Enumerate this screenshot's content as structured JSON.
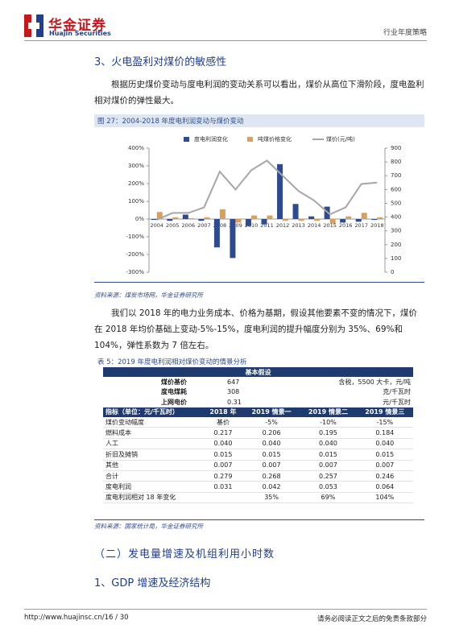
{
  "header": {
    "brand": "华金证券",
    "brand_en": "Huajin Securities",
    "section": "行业年度策略"
  },
  "heading": "3、火电盈利对煤价的敏感性",
  "paragraph1": "根据历史煤价变动与度电利润的变动关系可以看出，煤价从高位下滑阶段，度电盈利相对煤价的弹性最大。",
  "figure_caption": "图 27：2004-2018 年度电利润变动与煤价变动",
  "chart_data": {
    "type": "bar",
    "categories": [
      "2004",
      "2005",
      "2006",
      "2007",
      "2008",
      "2009",
      "2010",
      "2011",
      "2012",
      "2013",
      "2014",
      "2015",
      "2016",
      "2017",
      "2018"
    ],
    "series": [
      {
        "name": "度电利润变化",
        "color": "#2f4b8f",
        "values": [
          -5,
          -10,
          25,
          -10,
          -160,
          -220,
          -40,
          -30,
          310,
          85,
          15,
          70,
          -20,
          -15,
          -5
        ]
      },
      {
        "name": "吨煤价格变化",
        "color": "#d9a05b",
        "values": [
          40,
          10,
          5,
          10,
          55,
          -20,
          20,
          20,
          -10,
          -10,
          -10,
          -25,
          15,
          35,
          10
        ]
      },
      {
        "name": "煤价(元/吨)",
        "color": "#a6a6a6",
        "type": "line",
        "axis": "y2",
        "values": [
          380,
          430,
          430,
          470,
          730,
          600,
          740,
          810,
          700,
          590,
          520,
          420,
          470,
          640,
          650
        ]
      }
    ],
    "ylim": [
      -300,
      400
    ],
    "yticks": [
      {
        "value": -300,
        "label": "-300%"
      },
      {
        "value": -200,
        "label": "-200%"
      },
      {
        "value": -100,
        "label": "-100%"
      },
      {
        "value": 0,
        "label": "0%"
      },
      {
        "value": 100,
        "label": "100%"
      },
      {
        "value": 200,
        "label": "200%"
      },
      {
        "value": 300,
        "label": "300%"
      },
      {
        "value": 400,
        "label": "400%"
      }
    ],
    "y2lim": [
      0,
      900
    ],
    "y2ticks": [
      0,
      100,
      200,
      300,
      400,
      500,
      600,
      700,
      800,
      900
    ],
    "grid": false
  },
  "figure_source": "资料来源：煤炭市场网，华金证券研究所",
  "paragraph2": "我们以 2018 年的电力业务成本、价格为基期，假设其他要素不变的情况下，煤价在 2018 年均价基础上变动-5%-15%，度电利润的提升幅度分别为 35%、69%和 104%，弹性系数为 7 倍左右。",
  "table_caption": "表 5：2019 年度电利润相对煤价变动的情景分析",
  "table": {
    "basic_title": "基本假设",
    "basic_rows": [
      [
        "煤价基价",
        "647",
        "含税，5500 大卡，元/吨"
      ],
      [
        "度电煤耗",
        "308",
        "克/千瓦时"
      ],
      [
        "上网电价",
        "0.31",
        "元/千瓦时"
      ]
    ],
    "header": [
      "指标（单位：元/千瓦时）",
      "2018 年",
      "2019 情景一",
      "2019 情景二",
      "2019 情景三"
    ],
    "rows": [
      [
        "煤价变动幅度",
        "基价",
        "-5%",
        "-10%",
        "-15%"
      ],
      [
        "燃料成本",
        "0.217",
        "0.206",
        "0.195",
        "0.184"
      ],
      [
        "人工",
        "0.040",
        "0.040",
        "0.040",
        "0.040"
      ],
      [
        "折旧及摊销",
        "0.015",
        "0.015",
        "0.015",
        "0.015"
      ],
      [
        "其他",
        "0.007",
        "0.007",
        "0.007",
        "0.007"
      ],
      [
        "合计",
        "0.279",
        "0.268",
        "0.257",
        "0.246"
      ],
      [
        "度电利润",
        "0.031",
        "0.042",
        "0.053",
        "0.064"
      ],
      [
        "度电利润相对 18 年变化",
        null,
        "35%",
        "69%",
        "104%"
      ]
    ]
  },
  "table_source": "资料来源：国家统计局，华金证券研究所",
  "heading2": "（二）发电量增速及机组利用小时数",
  "heading3": "1、GDP 增速及经济结构",
  "footer": {
    "url": "http://www.huajinsc.cn/16 / 30",
    "disclaimer": "请务必阅读正文之后的免责条款部分"
  }
}
